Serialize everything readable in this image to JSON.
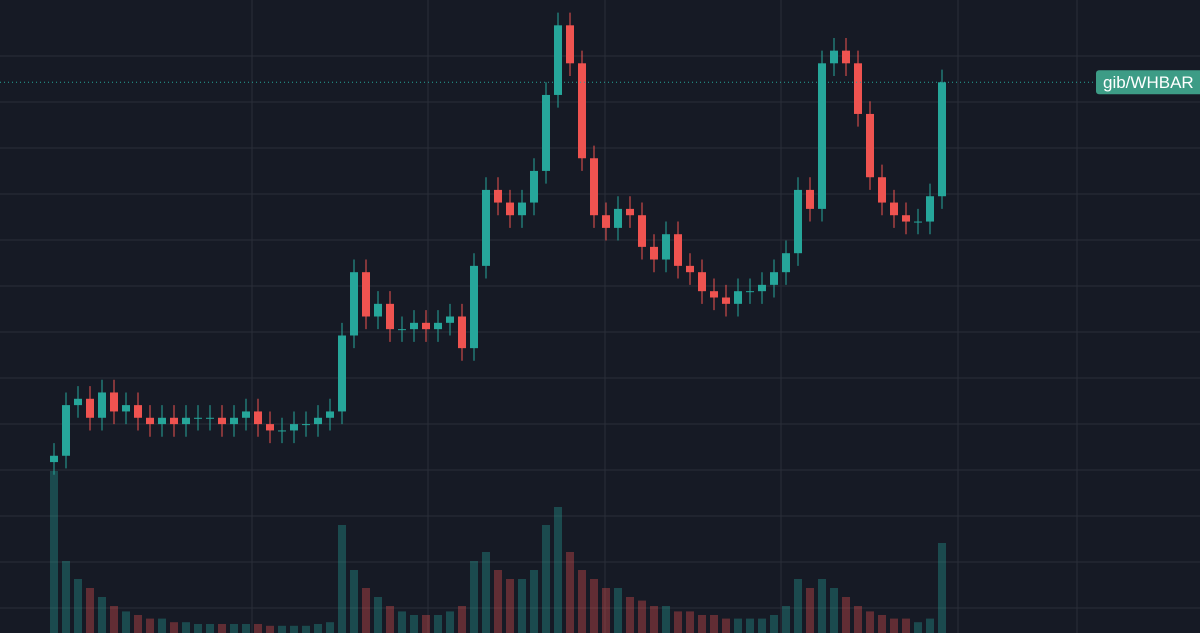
{
  "chart_data": {
    "type": "candlestick",
    "label": "gib/WHBAR",
    "open": [
      27,
      28,
      36,
      37,
      34,
      38,
      35,
      36,
      34,
      33,
      34,
      33,
      34,
      34,
      34,
      33,
      34,
      35,
      33,
      32,
      32,
      33,
      33,
      34,
      35,
      47,
      57,
      50,
      52,
      48,
      48,
      49,
      48,
      49,
      50,
      45,
      58,
      70,
      68,
      66,
      68,
      73,
      85,
      96,
      90,
      75,
      66,
      64,
      67,
      66,
      61,
      59,
      63,
      58,
      57,
      54,
      53,
      52,
      54,
      54,
      55,
      57,
      60,
      70,
      67,
      90,
      92,
      90,
      82,
      72,
      68,
      66,
      65,
      65,
      69
    ],
    "high": [
      30,
      38,
      39,
      39,
      40,
      40,
      38,
      38,
      36,
      36,
      36,
      36,
      36,
      36,
      36,
      36,
      37,
      37,
      35,
      34,
      35,
      35,
      36,
      37,
      49,
      59,
      59,
      54,
      54,
      50,
      51,
      51,
      51,
      52,
      52,
      60,
      72,
      72,
      70,
      70,
      75,
      87,
      98,
      98,
      92,
      77,
      68,
      69,
      69,
      68,
      63,
      65,
      65,
      60,
      59,
      56,
      55,
      56,
      56,
      57,
      59,
      62,
      72,
      72,
      92,
      94,
      94,
      92,
      84,
      74,
      70,
      68,
      67,
      71,
      89
    ],
    "low": [
      25,
      26,
      34,
      32,
      32,
      33,
      33,
      32,
      31,
      31,
      31,
      31,
      32,
      32,
      31,
      31,
      32,
      31,
      30,
      30,
      30,
      31,
      31,
      32,
      33,
      45,
      48,
      48,
      46,
      46,
      46,
      46,
      46,
      47,
      43,
      43,
      56,
      66,
      64,
      64,
      66,
      71,
      83,
      88,
      73,
      64,
      62,
      62,
      64,
      59,
      57,
      57,
      56,
      55,
      52,
      51,
      50,
      50,
      52,
      52,
      53,
      55,
      58,
      65,
      65,
      88,
      88,
      80,
      70,
      66,
      64,
      63,
      63,
      63,
      67
    ],
    "close": [
      28,
      36,
      37,
      34,
      38,
      35,
      36,
      34,
      33,
      34,
      33,
      34,
      34,
      34,
      33,
      34,
      35,
      33,
      32,
      32,
      33,
      33,
      34,
      35,
      47,
      57,
      50,
      52,
      48,
      48,
      49,
      48,
      49,
      50,
      45,
      58,
      70,
      68,
      66,
      68,
      73,
      85,
      96,
      90,
      75,
      66,
      64,
      67,
      66,
      61,
      59,
      63,
      58,
      57,
      54,
      53,
      52,
      54,
      54,
      55,
      57,
      60,
      70,
      67,
      90,
      92,
      90,
      82,
      72,
      68,
      66,
      65,
      65,
      69,
      87
    ],
    "volume": [
      90,
      40,
      30,
      25,
      20,
      15,
      12,
      10,
      8,
      8,
      6,
      6,
      5,
      5,
      5,
      5,
      5,
      5,
      4,
      4,
      4,
      4,
      5,
      6,
      60,
      35,
      25,
      20,
      15,
      12,
      10,
      10,
      10,
      12,
      15,
      40,
      45,
      35,
      30,
      30,
      35,
      60,
      70,
      45,
      35,
      30,
      25,
      25,
      20,
      18,
      15,
      15,
      12,
      12,
      10,
      10,
      8,
      8,
      8,
      8,
      10,
      15,
      30,
      25,
      30,
      25,
      20,
      15,
      12,
      10,
      8,
      8,
      6,
      8,
      50
    ],
    "ylim": [
      0,
      100
    ],
    "y2lim": [
      0,
      100
    ],
    "up_color": "#26a69a",
    "down_color": "#ef5350"
  }
}
